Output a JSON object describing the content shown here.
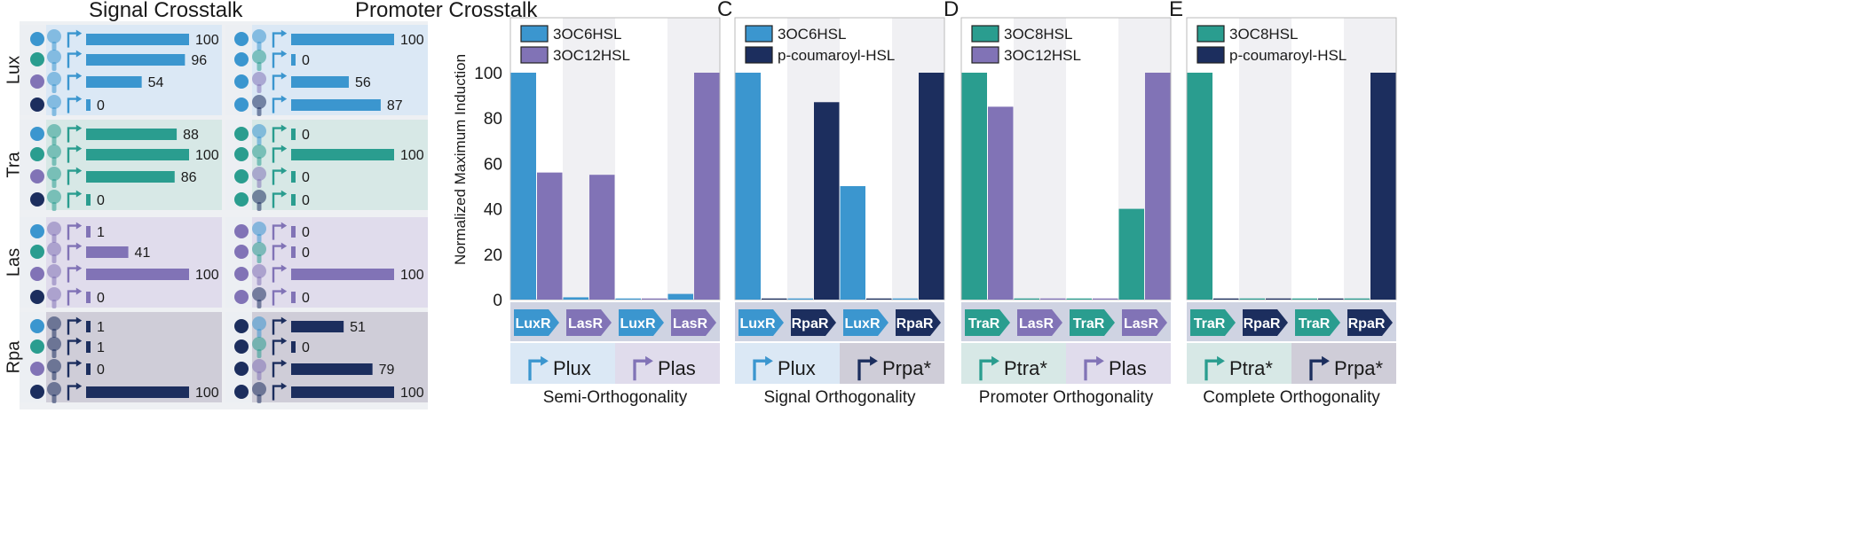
{
  "colors": {
    "lux": "#3b96cf",
    "tra": "#2a9d8f",
    "las": "#8173b6",
    "rpa": "#1c2e5e",
    "lux_bg": "#dbe8f5",
    "tra_bg": "#d7e8e6",
    "las_bg": "#e0dcec",
    "rpa_bg": "#cfcdd8",
    "gray_bg": "#ececef",
    "row_bg": "#e8e8ea"
  },
  "left": {
    "header_signal": "Signal Crosstalk",
    "header_promoter": "Promoter Crosstalk",
    "groups": [
      {
        "name": "Lux",
        "key": "lux",
        "signal": [
          100,
          96,
          54,
          0
        ],
        "promoter": [
          100,
          0,
          56,
          87
        ]
      },
      {
        "name": "Tra",
        "key": "tra",
        "signal": [
          88,
          100,
          86,
          0
        ],
        "promoter": [
          0,
          100,
          0,
          0
        ]
      },
      {
        "name": "Las",
        "key": "las",
        "signal": [
          1,
          41,
          100,
          0
        ],
        "promoter": [
          0,
          0,
          100,
          0
        ]
      },
      {
        "name": "Rpa",
        "key": "rpa",
        "signal": [
          1,
          1,
          0,
          100
        ],
        "promoter": [
          51,
          0,
          79,
          100
        ]
      }
    ],
    "row_signal_keys": [
      "lux",
      "tra",
      "las",
      "rpa"
    ]
  },
  "ylabel": "Normalized Maximum Induction",
  "chart_data": [
    {
      "type": "bar",
      "panel": "",
      "title": "Semi-Orthogonality",
      "legend": [
        {
          "name": "3OC6HSL",
          "color": "lux"
        },
        {
          "name": "3OC12HSL",
          "color": "las"
        }
      ],
      "categories": [
        "LuxR",
        "LasR",
        "LuxR",
        "LasR"
      ],
      "category_colors": [
        "lux",
        "las",
        "lux",
        "las"
      ],
      "promoters": [
        {
          "label": "Plux",
          "color": "lux"
        },
        {
          "label": "Plas",
          "color": "las"
        }
      ],
      "series": [
        {
          "name": "3OC6HSL",
          "color": "lux",
          "values": [
            100,
            1,
            0.5,
            2.5
          ]
        },
        {
          "name": "3OC12HSL",
          "color": "las",
          "values": [
            56,
            55,
            0.5,
            100
          ]
        }
      ],
      "ylim": [
        0,
        100
      ],
      "yticks": [
        0,
        20,
        40,
        60,
        80,
        100
      ]
    },
    {
      "type": "bar",
      "panel": "C",
      "title": "Signal Orthogonality",
      "legend": [
        {
          "name": "3OC6HSL",
          "color": "lux"
        },
        {
          "name": "p-coumaroyl-HSL",
          "color": "rpa"
        }
      ],
      "categories": [
        "LuxR",
        "RpaR",
        "LuxR",
        "RpaR"
      ],
      "category_colors": [
        "lux",
        "rpa",
        "lux",
        "rpa"
      ],
      "promoters": [
        {
          "label": "Plux",
          "color": "lux"
        },
        {
          "label": "Prpa*",
          "color": "rpa"
        }
      ],
      "series": [
        {
          "name": "3OC6HSL",
          "color": "lux",
          "values": [
            100,
            0.5,
            50,
            0.5
          ]
        },
        {
          "name": "p-coumaroyl-HSL",
          "color": "rpa",
          "values": [
            0.5,
            87,
            0.5,
            100
          ]
        }
      ],
      "ylim": [
        0,
        100
      ]
    },
    {
      "type": "bar",
      "panel": "D",
      "title": "Promoter Orthogonality",
      "legend": [
        {
          "name": "3OC8HSL",
          "color": "tra"
        },
        {
          "name": "3OC12HSL",
          "color": "las"
        }
      ],
      "categories": [
        "TraR",
        "LasR",
        "TraR",
        "LasR"
      ],
      "category_colors": [
        "tra",
        "las",
        "tra",
        "las"
      ],
      "promoters": [
        {
          "label": "Ptra*",
          "color": "tra"
        },
        {
          "label": "Plas",
          "color": "las"
        }
      ],
      "series": [
        {
          "name": "3OC8HSL",
          "color": "tra",
          "values": [
            100,
            0.5,
            0.5,
            40
          ]
        },
        {
          "name": "3OC12HSL",
          "color": "las",
          "values": [
            85,
            0.5,
            0.5,
            100
          ]
        }
      ],
      "ylim": [
        0,
        100
      ]
    },
    {
      "type": "bar",
      "panel": "E",
      "title": "Complete Orthogonality",
      "legend": [
        {
          "name": "3OC8HSL",
          "color": "tra"
        },
        {
          "name": "p-coumaroyl-HSL",
          "color": "rpa"
        }
      ],
      "categories": [
        "TraR",
        "RpaR",
        "TraR",
        "RpaR"
      ],
      "category_colors": [
        "tra",
        "rpa",
        "tra",
        "rpa"
      ],
      "promoters": [
        {
          "label": "Ptra*",
          "color": "tra"
        },
        {
          "label": "Prpa*",
          "color": "rpa"
        }
      ],
      "series": [
        {
          "name": "3OC8HSL",
          "color": "tra",
          "values": [
            100,
            0.5,
            0.5,
            0.5
          ]
        },
        {
          "name": "p-coumaroyl-HSL",
          "color": "rpa",
          "values": [
            0.5,
            0.5,
            0.5,
            100
          ]
        }
      ],
      "ylim": [
        0,
        100
      ]
    }
  ]
}
